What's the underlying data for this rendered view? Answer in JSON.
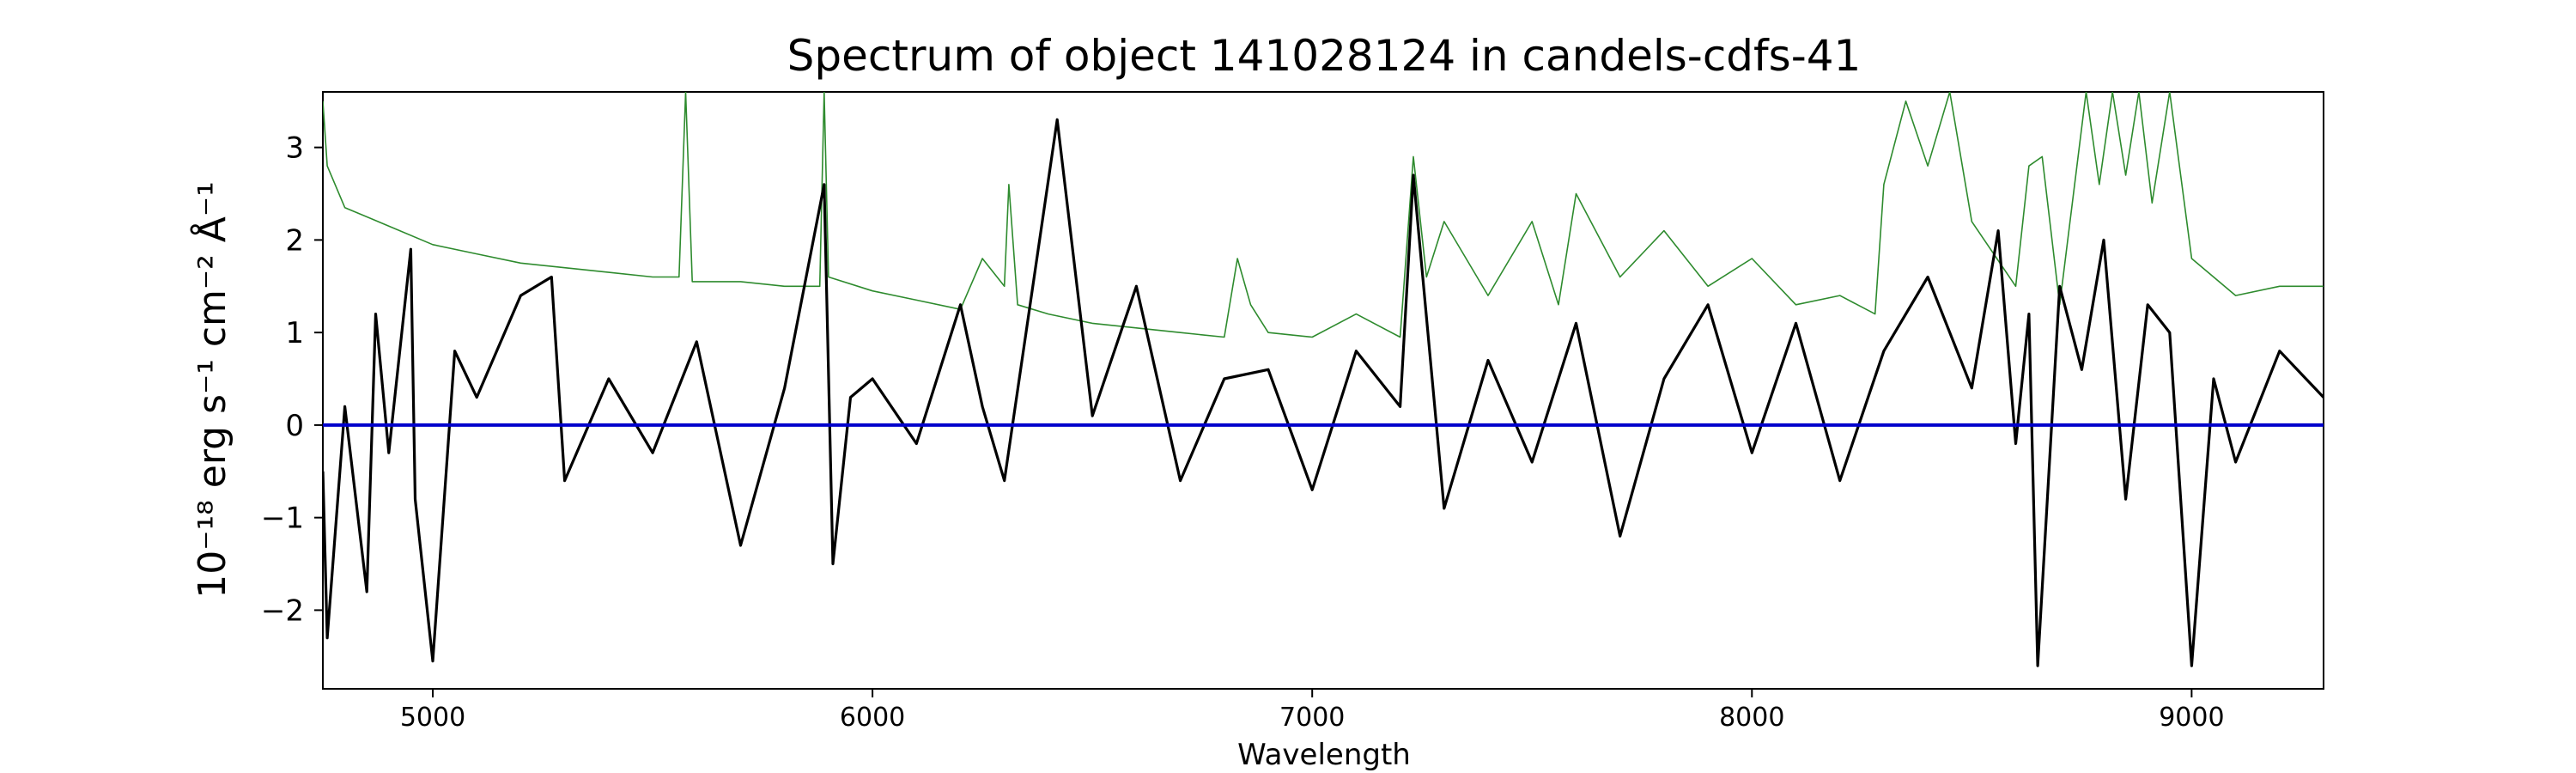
{
  "chart_data": {
    "type": "line",
    "title": "Spectrum of object 141028124 in candels-cdfs-41",
    "xlabel": "Wavelength",
    "ylabel": "10⁻¹⁸ erg s⁻¹ cm⁻² Å⁻¹",
    "xlim": [
      4750,
      9300
    ],
    "ylim": [
      -2.85,
      3.6
    ],
    "xticks": [
      5000,
      6000,
      7000,
      8000,
      9000
    ],
    "xtick_labels": [
      "5000",
      "6000",
      "7000",
      "8000",
      "9000"
    ],
    "yticks": [
      -2,
      -1,
      0,
      1,
      2,
      3
    ],
    "ytick_labels": [
      "−2",
      "−1",
      "0",
      "1",
      "2",
      "3"
    ],
    "grid": false,
    "series": [
      {
        "role": "noise",
        "color": "#2e8b2e",
        "x": [
          4750,
          4760,
          4800,
          4900,
          5000,
          5100,
          5200,
          5300,
          5400,
          5500,
          5560,
          5575,
          5590,
          5700,
          5800,
          5880,
          5890,
          5900,
          6000,
          6100,
          6200,
          6250,
          6300,
          6310,
          6330,
          6400,
          6500,
          6600,
          6700,
          6800,
          6830,
          6860,
          6900,
          7000,
          7100,
          7200,
          7230,
          7260,
          7300,
          7400,
          7500,
          7560,
          7600,
          7700,
          7800,
          7900,
          8000,
          8100,
          8200,
          8280,
          8300,
          8350,
          8400,
          8450,
          8500,
          8600,
          8630,
          8660,
          8700,
          8760,
          8790,
          8820,
          8850,
          8880,
          8910,
          8950,
          9000,
          9100,
          9200,
          9300
        ],
        "y": [
          3.5,
          2.8,
          2.35,
          2.15,
          1.95,
          1.85,
          1.75,
          1.7,
          1.65,
          1.6,
          1.6,
          3.6,
          1.55,
          1.55,
          1.5,
          1.5,
          3.6,
          1.6,
          1.45,
          1.35,
          1.25,
          1.8,
          1.5,
          2.6,
          1.3,
          1.2,
          1.1,
          1.05,
          1.0,
          0.95,
          1.8,
          1.3,
          1.0,
          0.95,
          1.2,
          0.95,
          2.9,
          1.6,
          2.2,
          1.4,
          2.2,
          1.3,
          2.5,
          1.6,
          2.1,
          1.5,
          1.8,
          1.3,
          1.4,
          1.2,
          2.6,
          3.5,
          2.8,
          3.6,
          2.2,
          1.5,
          2.8,
          2.9,
          1.3,
          3.6,
          2.6,
          3.6,
          2.7,
          3.6,
          2.4,
          3.6,
          1.8,
          1.4,
          1.5,
          1.5
        ]
      },
      {
        "role": "flux",
        "color": "#000000",
        "x": [
          4750,
          4760,
          4800,
          4850,
          4870,
          4900,
          4950,
          4960,
          5000,
          5050,
          5100,
          5200,
          5270,
          5300,
          5400,
          5500,
          5600,
          5700,
          5800,
          5890,
          5910,
          5950,
          6000,
          6100,
          6200,
          6250,
          6300,
          6420,
          6500,
          6600,
          6700,
          6800,
          6900,
          7000,
          7100,
          7200,
          7230,
          7300,
          7400,
          7500,
          7600,
          7700,
          7800,
          7900,
          8000,
          8100,
          8200,
          8300,
          8400,
          8500,
          8560,
          8600,
          8630,
          8650,
          8700,
          8750,
          8800,
          8850,
          8900,
          8950,
          9000,
          9050,
          9100,
          9200,
          9300
        ],
        "y": [
          -0.5,
          -2.3,
          0.2,
          -1.8,
          1.2,
          -0.3,
          1.9,
          -0.8,
          -2.55,
          0.8,
          0.3,
          1.4,
          1.6,
          -0.6,
          0.5,
          -0.3,
          0.9,
          -1.3,
          0.4,
          2.6,
          -1.5,
          0.3,
          0.5,
          -0.2,
          1.3,
          0.2,
          -0.6,
          3.3,
          0.1,
          1.5,
          -0.6,
          0.5,
          0.6,
          -0.7,
          0.8,
          0.2,
          2.7,
          -0.9,
          0.7,
          -0.4,
          1.1,
          -1.2,
          0.5,
          1.3,
          -0.3,
          1.1,
          -0.6,
          0.8,
          1.6,
          0.4,
          2.1,
          -0.2,
          1.2,
          -2.6,
          1.5,
          0.6,
          2.0,
          -0.8,
          1.3,
          1.0,
          -2.6,
          0.5,
          -0.4,
          0.8,
          0.3
        ]
      },
      {
        "role": "zero",
        "color": "#0000cc",
        "x": [
          4750,
          9300
        ],
        "y": [
          0,
          0
        ]
      }
    ]
  }
}
